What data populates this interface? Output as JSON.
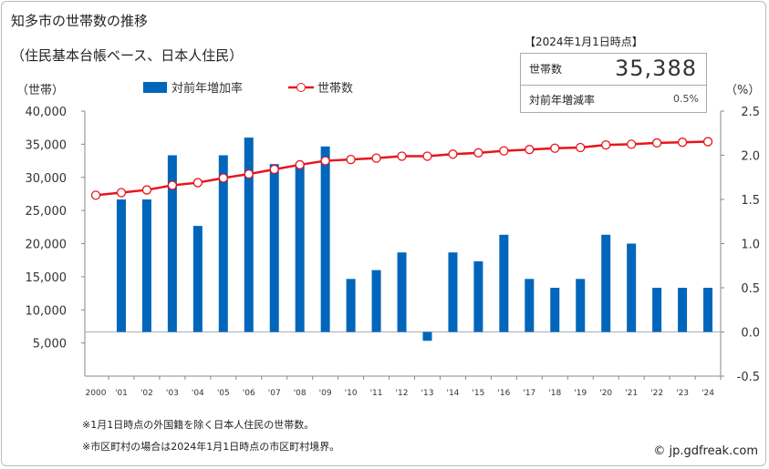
{
  "title": "知多市の世帯数の推移",
  "subtitle": "（住民基本台帳ベース、日本人住民）",
  "summary": {
    "as_of": "【2024年1月1日時点】",
    "households_label": "世帯数",
    "households_value": "35,388",
    "rate_label": "対前年増減率",
    "rate_value": "0.5%"
  },
  "notes": [
    "※1月1日時点の外国籍を除く日本人住民の世帯数。",
    "※市区町村の場合は2024年1月1日時点の市区町村境界。"
  ],
  "credit": "© jp.gdfreak.com",
  "chart_data": {
    "type": "bar+line",
    "categories": [
      "2000",
      "'01",
      "'02",
      "'03",
      "'04",
      "'05",
      "'06",
      "'07",
      "'08",
      "'09",
      "'10",
      "'11",
      "'12",
      "'13",
      "'14",
      "'15",
      "'16",
      "'17",
      "'18",
      "'19",
      "'20",
      "'21",
      "'22",
      "'23",
      "'24"
    ],
    "left_axis": {
      "unit_label": "（世帯）",
      "ylim": [
        0,
        40000
      ],
      "ticks": [
        "5,000",
        "10,000",
        "15,000",
        "20,000",
        "25,000",
        "30,000",
        "35,000",
        "40,000"
      ],
      "tick_values": [
        5000,
        10000,
        15000,
        20000,
        25000,
        30000,
        35000,
        40000
      ]
    },
    "right_axis": {
      "unit_label": "（%）",
      "ylim": [
        -0.5,
        2.5
      ],
      "ticks": [
        "-0.5",
        "0.0",
        "0.5",
        "1.0",
        "1.5",
        "2.0",
        "2.5"
      ],
      "tick_values": [
        -0.5,
        0,
        0.5,
        1,
        1.5,
        2,
        2.5
      ]
    },
    "series": [
      {
        "name": "対前年増加率",
        "type": "bar",
        "axis": "right",
        "color": "#0066bb",
        "values": [
          null,
          1.5,
          1.5,
          2.0,
          1.2,
          2.0,
          2.2,
          1.9,
          1.9,
          2.1,
          0.6,
          0.7,
          0.9,
          -0.1,
          0.9,
          0.8,
          1.1,
          0.6,
          0.5,
          0.6,
          1.1,
          1.0,
          0.5,
          0.5,
          0.5
        ]
      },
      {
        "name": "世帯数",
        "type": "line",
        "axis": "left",
        "color": "#e8141b",
        "values": [
          27300,
          27700,
          28100,
          28800,
          29200,
          29900,
          30500,
          31200,
          31900,
          32500,
          32700,
          32900,
          33200,
          33200,
          33500,
          33700,
          34000,
          34200,
          34400,
          34500,
          34900,
          35000,
          35200,
          35300,
          35388
        ]
      }
    ],
    "legend": "top"
  }
}
